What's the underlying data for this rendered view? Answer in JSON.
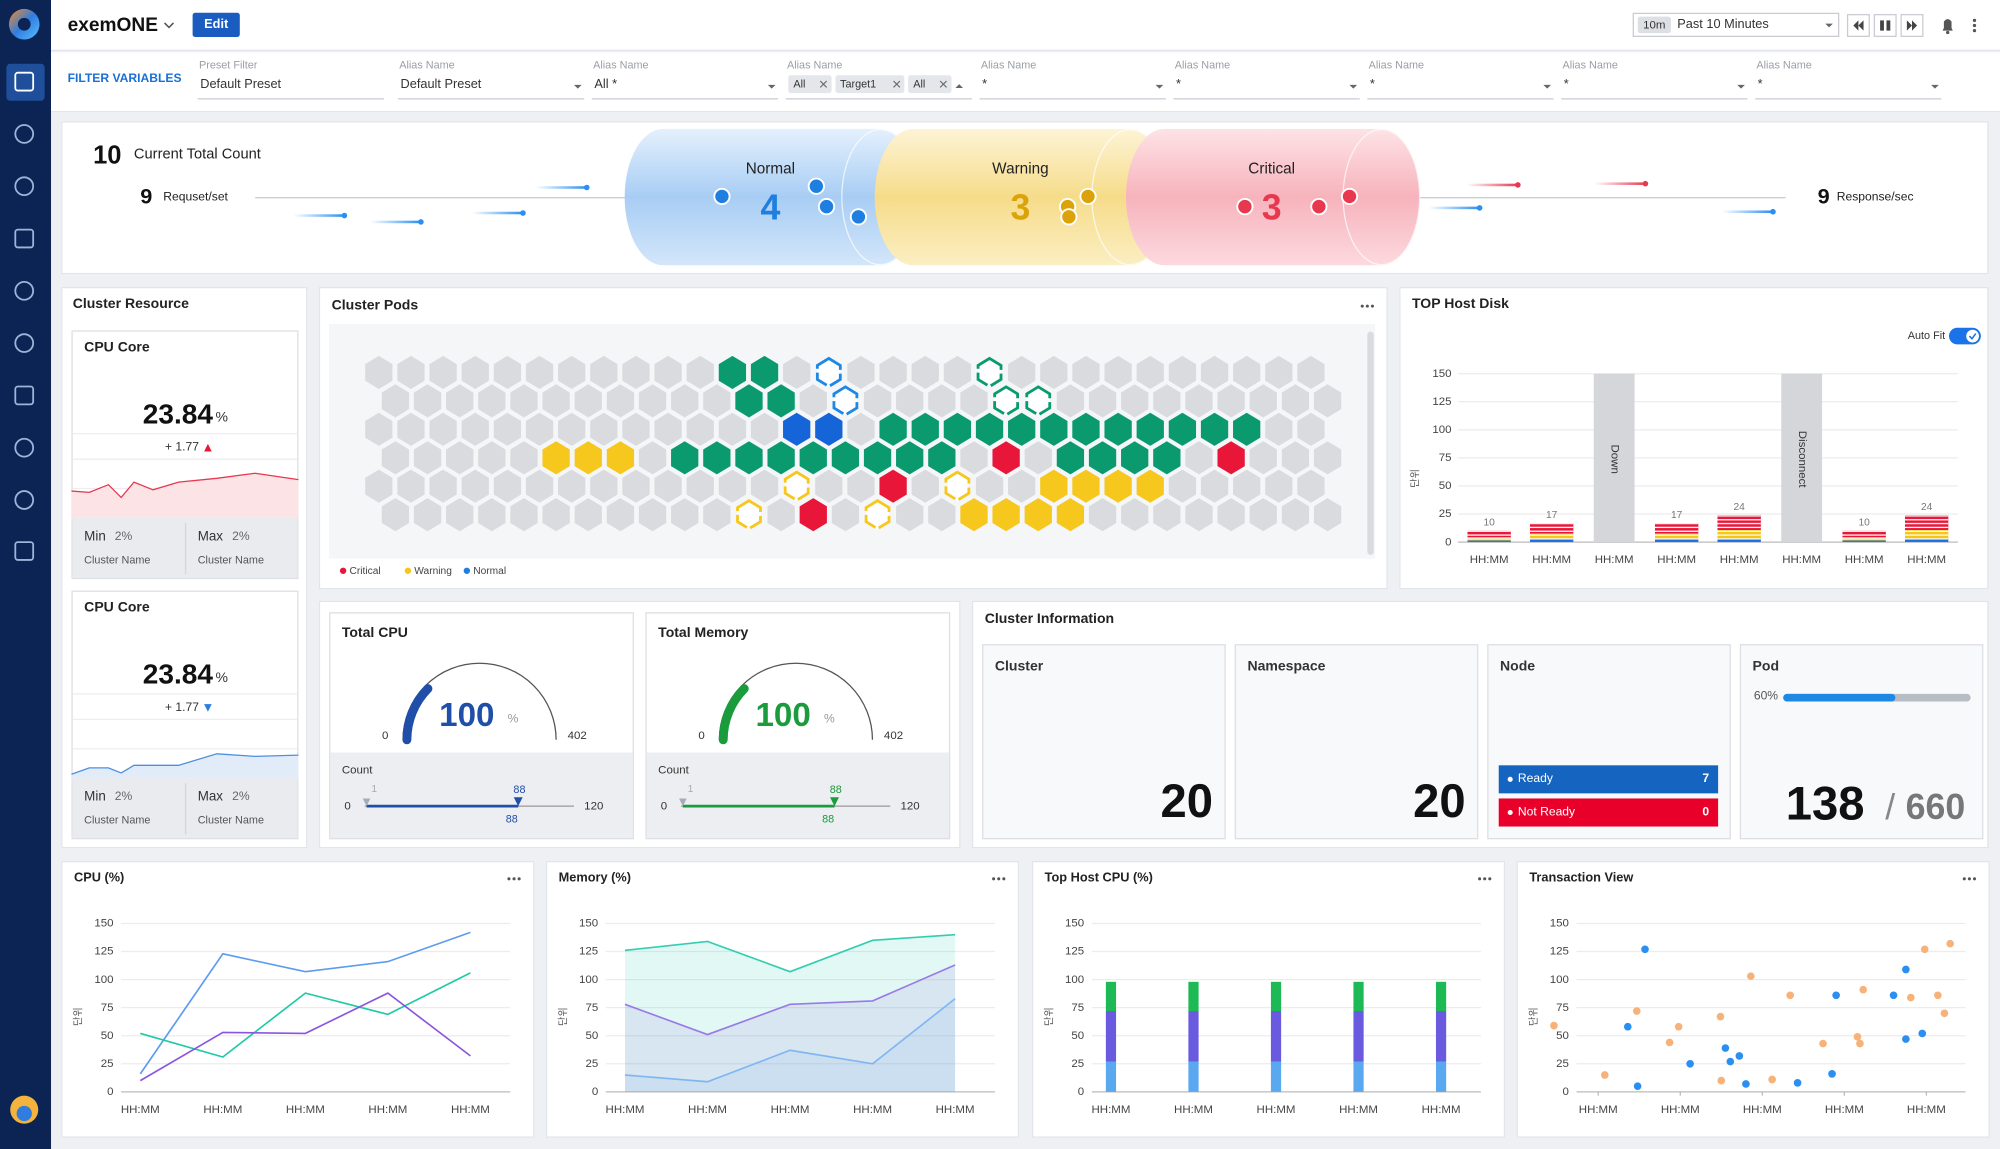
{
  "header": {
    "app_name": "exemONE",
    "edit": "Edit",
    "time_short": "10m",
    "time_range": "Past 10 Minutes"
  },
  "filters": {
    "title": "FILTER VARIABLES",
    "fields": [
      {
        "label": "Preset Filter",
        "value": "Default Preset"
      },
      {
        "label": "Alias Name",
        "value": "Default Preset"
      },
      {
        "label": "Alias Name",
        "value": "All *"
      },
      {
        "label": "Alias Name",
        "chips": [
          "All",
          "Target1",
          "All"
        ]
      },
      {
        "label": "Alias Name",
        "value": "*"
      },
      {
        "label": "Alias Name",
        "value": "*"
      },
      {
        "label": "Alias Name",
        "value": "*"
      },
      {
        "label": "Alias Name",
        "value": "*"
      },
      {
        "label": "Alias Name",
        "value": "*"
      }
    ]
  },
  "summary": {
    "total_count": 10,
    "total_count_label": "Current Total Count",
    "request": 9,
    "request_label": "Requset/set",
    "response": 9,
    "response_label": "Response/sec",
    "states": [
      {
        "name": "Normal",
        "value": 4,
        "color": "#1e7fe0"
      },
      {
        "name": "Warning",
        "value": 3,
        "color": "#dca20a"
      },
      {
        "name": "Critical",
        "value": 3,
        "color": "#e8384f"
      }
    ]
  },
  "cluster_resource": {
    "title": "Cluster Resource",
    "cards": [
      {
        "title": "CPU Core",
        "value": 23.84,
        "unit": "%",
        "change": "+ 1.77",
        "direction": "up",
        "min_label": "Min",
        "min": "2%",
        "max_label": "Max",
        "max": "2%",
        "min_name": "Cluster Name",
        "max_name": "Cluster Name"
      },
      {
        "title": "CPU Core",
        "value": 23.84,
        "unit": "%",
        "change": "+ 1.77",
        "direction": "down",
        "min_label": "Min",
        "min": "2%",
        "max_label": "Max",
        "max": "2%",
        "min_name": "Cluster Name",
        "max_name": "Cluster Name"
      }
    ]
  },
  "cluster_pods": {
    "title": "Cluster Pods",
    "legend": [
      {
        "name": "Critical",
        "color": "#e8173a"
      },
      {
        "name": "Warning",
        "color": "#f5c518"
      },
      {
        "name": "Normal",
        "color": "#1e7fe0"
      }
    ]
  },
  "top_host_disk": {
    "title": "TOP Host Disk",
    "auto_fit": "Auto Fit",
    "y_label": "단위",
    "categories": [
      "HH:MM",
      "HH:MM",
      "HH:MM",
      "HH:MM",
      "HH:MM",
      "HH:MM",
      "HH:MM",
      "HH:MM"
    ],
    "values": [
      10,
      17,
      null,
      17,
      24,
      null,
      10,
      24
    ],
    "status": [
      null,
      null,
      "Down",
      null,
      null,
      "Disconnect",
      null,
      null
    ],
    "ylim": [
      0,
      150
    ],
    "yticks": [
      0,
      25,
      50,
      75,
      100,
      125,
      150
    ]
  },
  "gauges": [
    {
      "title": "Total CPU",
      "value": 100,
      "unit": "%",
      "min": 0,
      "max": 402,
      "color": "#1f4fa8",
      "count_label": "Count",
      "count_min": 0,
      "count_max": 120,
      "count_value": 88,
      "count_low": 1
    },
    {
      "title": "Total Memory",
      "value": 100,
      "unit": "%",
      "min": 0,
      "max": 402,
      "color": "#1a9b3c",
      "count_label": "Count",
      "count_min": 0,
      "count_max": 120,
      "count_value": 88,
      "count_low": 1
    }
  ],
  "cluster_info": {
    "title": "Cluster Information",
    "cluster_label": "Cluster",
    "cluster": 20,
    "namespace_label": "Namespace",
    "namespace": 20,
    "node_label": "Node",
    "ready_label": "Ready",
    "ready": 7,
    "not_ready_label": "Not Ready",
    "not_ready": 0,
    "pod_label": "Pod",
    "pod_percent": 60,
    "pod_percent_label": "60%",
    "pods": 138,
    "separator": "/",
    "pods_total": 660
  },
  "charts": [
    {
      "type": "line",
      "title": "CPU (%)",
      "y_label": "단위",
      "categories": [
        "HH:MM",
        "HH:MM",
        "HH:MM",
        "HH:MM",
        "HH:MM"
      ],
      "ylim": [
        0,
        150
      ],
      "yticks": [
        0,
        25,
        50,
        75,
        100,
        125,
        150
      ],
      "series": [
        {
          "color": "#5b9bf0",
          "values": [
            16,
            123,
            107,
            116,
            142
          ]
        },
        {
          "color": "#20c9a5",
          "values": [
            52,
            31,
            88,
            69,
            106
          ]
        },
        {
          "color": "#8a56e0",
          "values": [
            10,
            53,
            52,
            88,
            32
          ]
        }
      ]
    },
    {
      "type": "area",
      "title": "Memory (%)",
      "y_label": "단위",
      "categories": [
        "HH:MM",
        "HH:MM",
        "HH:MM",
        "HH:MM",
        "HH:MM"
      ],
      "ylim": [
        0,
        150
      ],
      "yticks": [
        0,
        25,
        50,
        75,
        100,
        125,
        150
      ],
      "series": [
        {
          "color": "#35cdb0",
          "values": [
            126,
            134,
            107,
            135,
            140
          ]
        },
        {
          "color": "#9a7ae6",
          "values": [
            78,
            51,
            78,
            81,
            113
          ]
        },
        {
          "color": "#7fb6f2",
          "values": [
            15,
            9,
            37,
            25,
            83
          ]
        }
      ]
    },
    {
      "type": "bar",
      "stacked": true,
      "title": "Top Host CPU (%)",
      "y_label": "단위",
      "categories": [
        "HH:MM",
        "HH:MM",
        "HH:MM",
        "HH:MM",
        "HH:MM"
      ],
      "ylim": [
        0,
        150
      ],
      "yticks": [
        0,
        25,
        50,
        75,
        100,
        125,
        150
      ],
      "series": [
        {
          "color": "#5aa9f0",
          "values": [
            27,
            27,
            27,
            27,
            27
          ]
        },
        {
          "color": "#6a5ae0",
          "values": [
            45,
            45,
            45,
            45,
            45
          ]
        },
        {
          "color": "#1db954",
          "values": [
            26,
            26,
            26,
            26,
            26
          ]
        }
      ]
    },
    {
      "type": "scatter",
      "title": "Transaction View",
      "y_label": "단위",
      "xlim": [
        -0.7,
        4.4
      ],
      "xticks": [
        {
          "value": 0,
          "label": "HH:MM"
        },
        {
          "value": 1,
          "label": "HH:MM"
        },
        {
          "value": 2,
          "label": "HH:MM"
        },
        {
          "value": 3,
          "label": "HH:MM"
        },
        {
          "value": 4,
          "label": "HH:MM"
        }
      ],
      "ylim": [
        0,
        150
      ],
      "yticks": [
        0,
        25,
        50,
        75,
        100,
        125,
        150
      ],
      "series": [
        {
          "color": "#f7b27a",
          "x": [
            -0.54,
            0.08,
            0.47,
            0.87,
            0.98,
            1.49,
            1.5,
            1.86,
            2.12,
            2.34,
            2.74,
            3.16,
            3.19,
            3.23,
            3.81,
            3.98,
            4.14,
            4.22,
            4.29
          ],
          "y": [
            59,
            15,
            72,
            44,
            58,
            67,
            10,
            103,
            11,
            86,
            43,
            49,
            43,
            91,
            84,
            127,
            86,
            70,
            132
          ]
        },
        {
          "color": "#2a8ff0",
          "x": [
            0.57,
            0.36,
            0.48,
            1.12,
            1.55,
            1.61,
            1.72,
            1.8,
            2.43,
            2.85,
            2.9,
            3.6,
            3.75,
            3.75,
            3.95
          ],
          "y": [
            127,
            58,
            5,
            25,
            39,
            27,
            32,
            7,
            8,
            16,
            86,
            86,
            109,
            47,
            52
          ]
        }
      ]
    }
  ]
}
